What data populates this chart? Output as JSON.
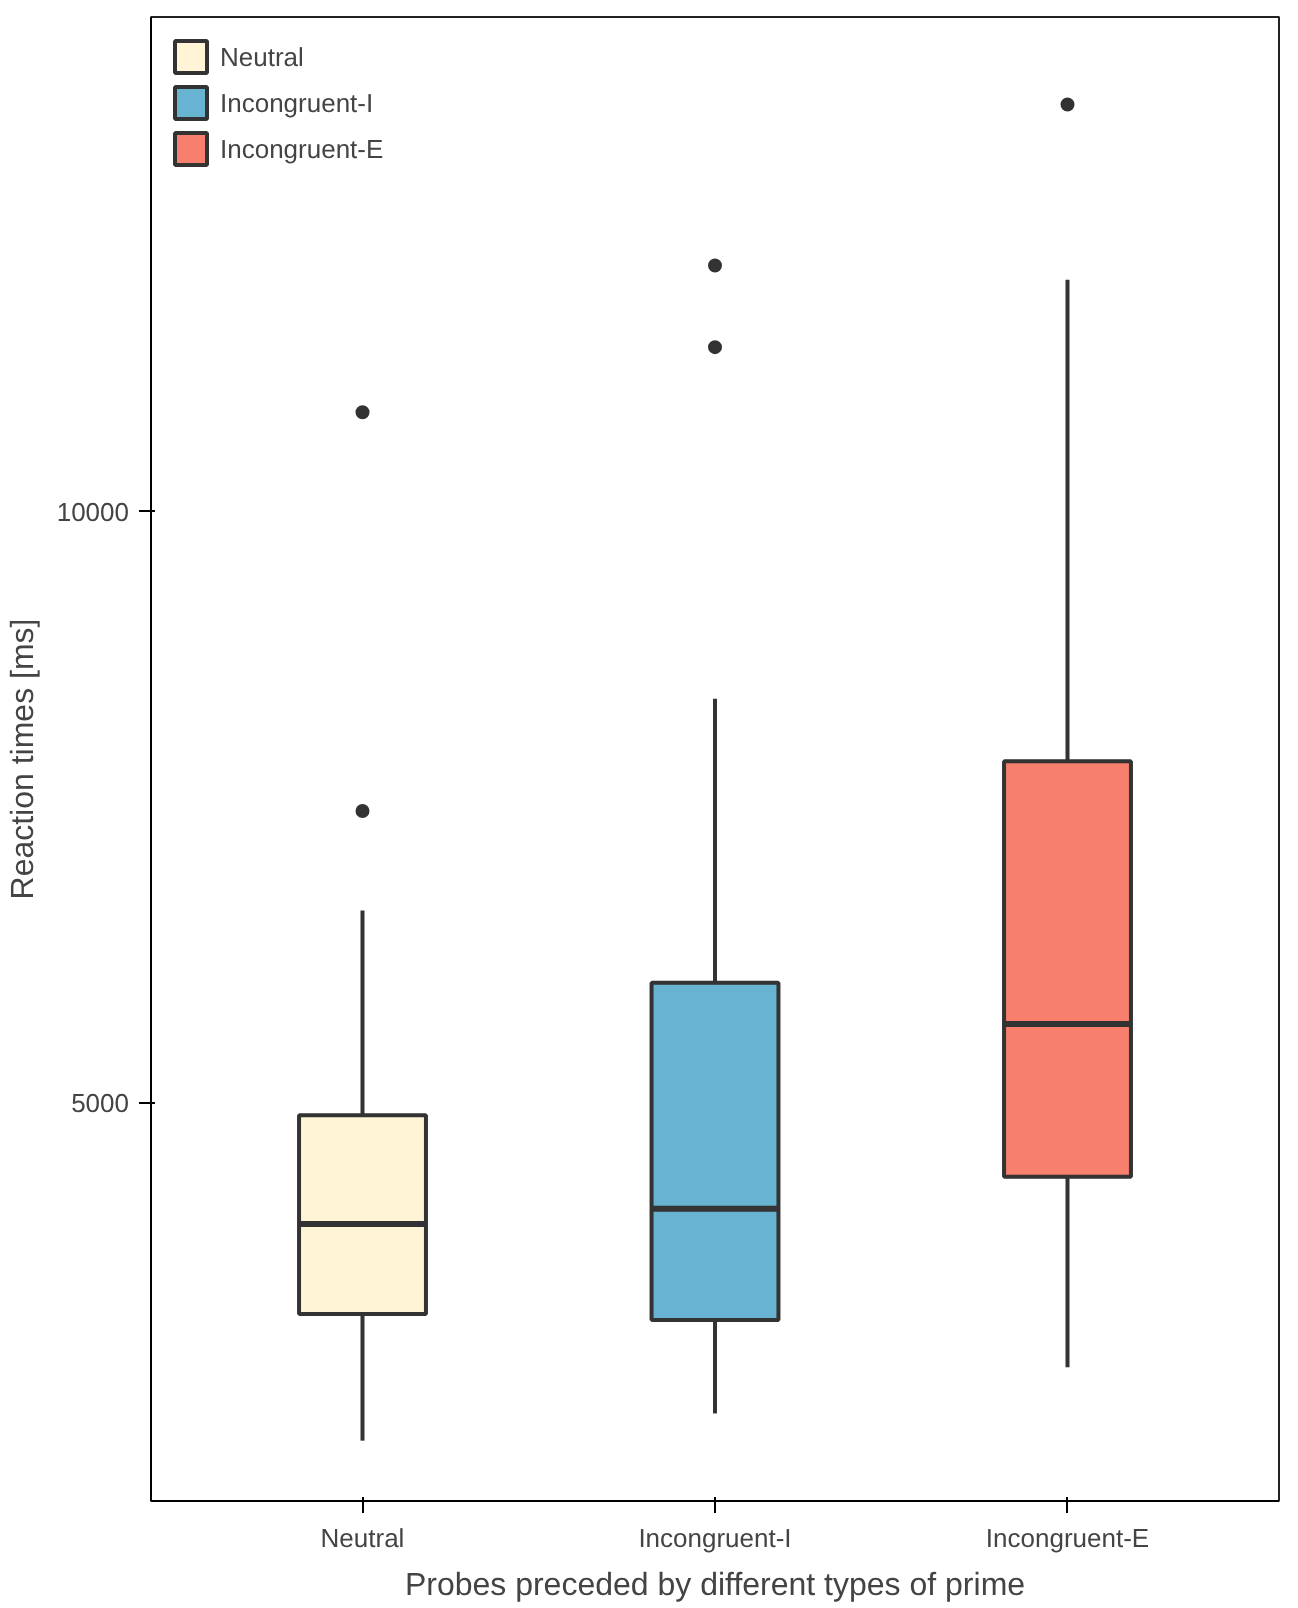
{
  "chart_data": {
    "type": "box",
    "xlabel": "Probes preceded by different types of prime",
    "ylabel": "Reaction times [ms]",
    "categories": [
      "Neutral",
      "Incongruent-I",
      "Incongruent-E"
    ],
    "series": [
      {
        "name": "Neutral",
        "color": "#fff5d6",
        "boxes": [
          {
            "low": 2150,
            "q1": 3220,
            "median": 3980,
            "q3": 4900,
            "high": 6630,
            "outliers": [
              7470,
              10840
            ]
          },
          null,
          null
        ]
      },
      {
        "name": "Incongruent-I",
        "color": "#67b3d1",
        "boxes": [
          null,
          {
            "low": 2380,
            "q1": 3170,
            "median": 4110,
            "q3": 6020,
            "high": 8420,
            "outliers": [
              11390,
              12080
            ]
          },
          null
        ]
      },
      {
        "name": "Incongruent-E",
        "color": "#f67f6e",
        "boxes": [
          null,
          null,
          {
            "low": 2770,
            "q1": 4380,
            "median": 5670,
            "q3": 7890,
            "high": 11960,
            "outliers": [
              13440
            ]
          }
        ]
      }
    ],
    "ylim": [
      1640,
      14180
    ],
    "yticks": [
      5000,
      10000
    ],
    "grid": false,
    "legend": "top left"
  }
}
